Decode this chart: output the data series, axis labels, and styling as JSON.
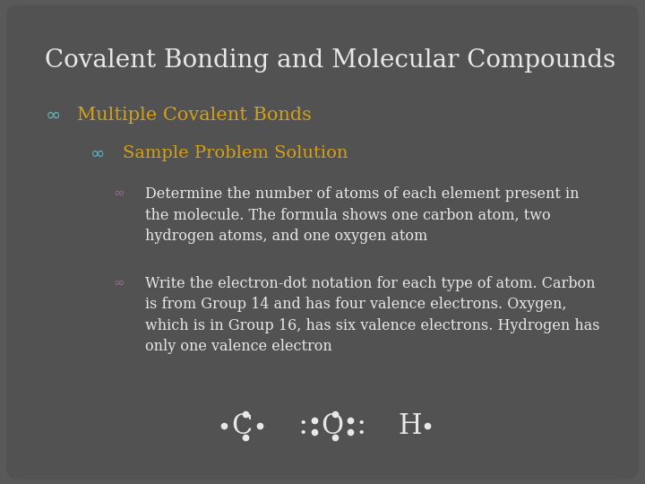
{
  "bg_color": "#595959",
  "panel_color": "#525252",
  "title": "Covalent Bonding and Molecular Compounds",
  "title_color": "#e8e8e8",
  "title_fontsize": 20,
  "lvl1_bullet": "∞",
  "lvl1_text": "Multiple Covalent Bonds",
  "lvl1_color": "#d4a017",
  "lvl1_bullet_color": "#5bb8c4",
  "lvl1_fontsize": 15,
  "lvl2_bullet": "∞",
  "lvl2_text": "Sample Problem Solution",
  "lvl2_color": "#d4a017",
  "lvl2_bullet_color": "#5bb8c4",
  "lvl2_fontsize": 14,
  "lvl3_bullet": "∞",
  "lvl3_bullet_color": "#9b6b9b",
  "item1": "Determine the number of atoms of each element present in\nthe molecule. The formula shows one carbon atom, two\nhydrogen atoms, and one oxygen atom",
  "item2": "Write the electron-dot notation for each type of atom. Carbon\nis from Group 14 and has four valence electrons. Oxygen,\nwhich is in Group 16, has six valence electrons. Hydrogen has\nonly one valence electron",
  "body_color": "#e8e8e8",
  "body_fontsize": 11.5,
  "dot_color": "#e8e8e8",
  "notation_fontsize": 22
}
